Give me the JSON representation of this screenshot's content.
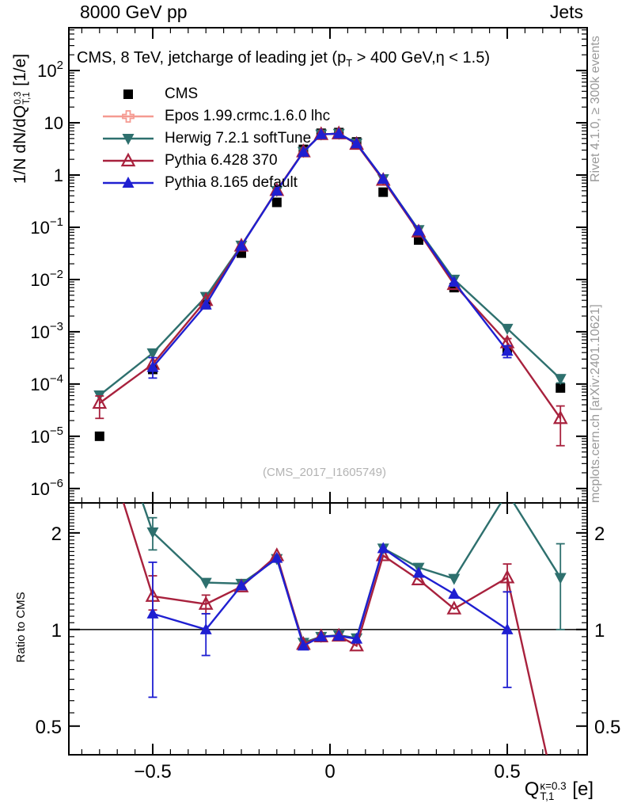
{
  "header": {
    "left": "8000 GeV pp",
    "right": "Jets"
  },
  "plot": {
    "title": {
      "prefix": "CMS, 8 TeV, jetcharge of leading jet (p",
      "sub": "T",
      "suffix": " > 400 GeV,η < 1.5)"
    },
    "watermark": "(CMS_2017_I1605749)",
    "rivet_note": "Rivet 4.1.0, ≥ 300k events",
    "site_note": "mcplots.cern.ch [arXiv:2401.10621]"
  },
  "axes": {
    "y_label": {
      "prefix": "1/N dN/dQ",
      "sup": "0.3",
      "sub": "T,1",
      "suffix": " [1/e]"
    },
    "x_label": {
      "prefix": "Q",
      "sup": "κ=0.3",
      "sub": "T,1",
      "suffix": " [e]"
    },
    "ratio_label": "Ratio to CMS"
  },
  "legend": [
    {
      "label": "CMS",
      "marker": "square",
      "color": "#000000",
      "line": false
    },
    {
      "label": "Epos 1.99.crmc.1.6.0 lhc",
      "marker": "open-cross",
      "color": "#f59a91",
      "line": true
    },
    {
      "label": "Herwig 7.2.1 softTune",
      "marker": "triangle-down",
      "color": "#2e706e",
      "line": true
    },
    {
      "label": "Pythia 6.428 370",
      "marker": "open-triangle-up",
      "color": "#a8213d",
      "line": true
    },
    {
      "label": "Pythia 8.165 default",
      "marker": "triangle-up",
      "color": "#1f1fd1",
      "line": true
    }
  ],
  "chart_data": {
    "type": "line",
    "title": "CMS, 8 TeV, jetcharge of leading jet (pT > 400 GeV, η < 1.5)",
    "xlabel": "Q_T,1^κ=0.3 [e]",
    "panels": [
      {
        "name": "spectrum",
        "ylabel": "1/N dN/dQ_T,1^0.3 [1/e]",
        "x_range": [
          -0.7366,
          0.7254
        ],
        "y_range": [
          5.3e-07,
          660.0
        ],
        "y_scale": "log10",
        "y_tick_exponents": [
          2,
          1,
          0,
          -1,
          -2,
          -3,
          -4,
          -5,
          -6
        ],
        "x_ticks": [
          -0.5,
          0,
          0.5
        ],
        "x_tick_labels": [
          "−0.5",
          "0",
          "0.5"
        ],
        "x_minor_step": 0.05,
        "series": [
          {
            "name": "CMS",
            "color": "#000000",
            "marker": "square",
            "line": false,
            "points": [
              [
                -0.65,
                1e-05
              ],
              [
                -0.5,
                0.00019
              ],
              [
                -0.35,
                0.0033
              ],
              [
                -0.25,
                0.032
              ],
              [
                -0.15,
                0.3
              ],
              [
                -0.075,
                3.1
              ],
              [
                -0.025,
                6.3
              ],
              [
                0.025,
                6.5
              ],
              [
                0.075,
                4.3
              ],
              [
                0.15,
                0.47
              ],
              [
                0.25,
                0.057
              ],
              [
                0.35,
                0.007
              ],
              [
                0.5,
                0.00043
              ],
              [
                0.65,
                8.4e-05
              ]
            ]
          },
          {
            "name": "Epos 1.99.crmc.1.6.0 lhc",
            "color": "#f59a91",
            "marker": "open-cross",
            "line": true,
            "points": []
          },
          {
            "name": "Herwig 7.2.1 softTune",
            "color": "#2e706e",
            "marker": "triangle-down",
            "line": true,
            "points": [
              [
                -0.65,
                6.1e-05
              ],
              [
                -0.5,
                0.00039
              ],
              [
                -0.35,
                0.0047
              ],
              [
                -0.25,
                0.045
              ],
              [
                -0.15,
                0.5
              ],
              [
                -0.075,
                2.8
              ],
              [
                -0.025,
                6.0
              ],
              [
                0.025,
                6.2
              ],
              [
                0.075,
                4.05
              ],
              [
                0.15,
                0.84
              ],
              [
                0.25,
                0.089
              ],
              [
                0.35,
                0.01
              ],
              [
                0.5,
                0.00115
              ],
              [
                0.65,
                0.000126,
                0.000105,
                0.00015
              ]
            ]
          },
          {
            "name": "Pythia 6.428 370",
            "color": "#a8213d",
            "marker": "open-triangle-up",
            "line": true,
            "points": [
              [
                -0.65,
                4.3e-05,
                2.2e-05,
                5.9e-05
              ],
              [
                -0.5,
                0.00024
              ],
              [
                -0.35,
                0.004
              ],
              [
                -0.25,
                0.044
              ],
              [
                -0.15,
                0.51
              ],
              [
                -0.075,
                2.8
              ],
              [
                -0.025,
                6.0
              ],
              [
                0.025,
                6.2
              ],
              [
                0.075,
                3.9
              ],
              [
                0.15,
                0.8
              ],
              [
                0.25,
                0.082
              ],
              [
                0.35,
                0.0081
              ],
              [
                0.5,
                0.00062,
                0.00051,
                0.00074
              ],
              [
                0.65,
                2.2e-05,
                6.6e-06,
                3.8e-05
              ]
            ]
          },
          {
            "name": "Pythia 8.165 default",
            "color": "#1f1fd1",
            "marker": "triangle-up",
            "line": true,
            "points": [
              [
                -0.5,
                0.00021,
                0.00013,
                0.00032
              ],
              [
                -0.35,
                0.0033
              ],
              [
                -0.25,
                0.044
              ],
              [
                -0.15,
                0.5
              ],
              [
                -0.075,
                2.76
              ],
              [
                -0.025,
                6.0
              ],
              [
                0.025,
                6.2
              ],
              [
                0.075,
                4.0
              ],
              [
                0.15,
                0.84
              ],
              [
                0.25,
                0.086
              ],
              [
                0.35,
                0.009
              ],
              [
                0.5,
                0.00043,
                0.00032,
                0.00054
              ]
            ]
          }
        ]
      },
      {
        "name": "ratio",
        "ylabel": "Ratio to CMS",
        "y_range": [
          0.407,
          2.48
        ],
        "y_scale": "log2",
        "y_ticks": [
          2,
          1,
          0.5
        ],
        "y_tick_labels": [
          "2",
          "1",
          "0.5"
        ],
        "reference_line": 1,
        "series": [
          {
            "name": "Herwig 7.2.1 softTune",
            "color": "#2e706e",
            "marker": "triangle-down",
            "line": true,
            "points": [
              [
                -0.65,
                6.1
              ],
              [
                -0.5,
                2.01,
                1.77,
                2.23
              ],
              [
                -0.35,
                1.4
              ],
              [
                -0.25,
                1.39
              ],
              [
                -0.15,
                1.66
              ],
              [
                -0.075,
                0.91
              ],
              [
                -0.025,
                0.95
              ],
              [
                0.025,
                0.96
              ],
              [
                0.075,
                0.94
              ],
              [
                0.15,
                1.79
              ],
              [
                0.25,
                1.56
              ],
              [
                0.35,
                1.44
              ],
              [
                0.5,
                2.67
              ],
              [
                0.65,
                1.45,
                1.0,
                1.85
              ]
            ]
          },
          {
            "name": "Pythia 6.428 370",
            "color": "#a8213d",
            "marker": "open-triangle-up",
            "line": true,
            "points": [
              [
                -0.65,
                4.3
              ],
              [
                -0.5,
                1.27,
                1.15,
                1.47
              ],
              [
                -0.35,
                1.2,
                1.12,
                1.28
              ],
              [
                -0.25,
                1.36
              ],
              [
                -0.15,
                1.7
              ],
              [
                -0.075,
                0.9
              ],
              [
                -0.025,
                0.95
              ],
              [
                0.025,
                0.955
              ],
              [
                0.075,
                0.89
              ],
              [
                0.15,
                1.7
              ],
              [
                0.25,
                1.43
              ],
              [
                0.35,
                1.16
              ],
              [
                0.5,
                1.45,
                1.31,
                1.6
              ],
              [
                0.65,
                0.26
              ]
            ]
          },
          {
            "name": "Pythia 8.165 default",
            "color": "#1f1fd1",
            "marker": "triangle-up",
            "line": true,
            "points": [
              [
                -0.5,
                1.12,
                0.615,
                1.62
              ],
              [
                -0.35,
                1.0,
                0.83,
                1.12
              ],
              [
                -0.25,
                1.37
              ],
              [
                -0.15,
                1.67
              ],
              [
                -0.075,
                0.89
              ],
              [
                -0.025,
                0.95
              ],
              [
                0.025,
                0.955
              ],
              [
                0.075,
                0.935
              ],
              [
                0.15,
                1.79
              ],
              [
                0.25,
                1.5
              ],
              [
                0.35,
                1.29
              ],
              [
                0.5,
                1.0,
                0.66,
                1.31
              ]
            ]
          }
        ]
      }
    ]
  }
}
